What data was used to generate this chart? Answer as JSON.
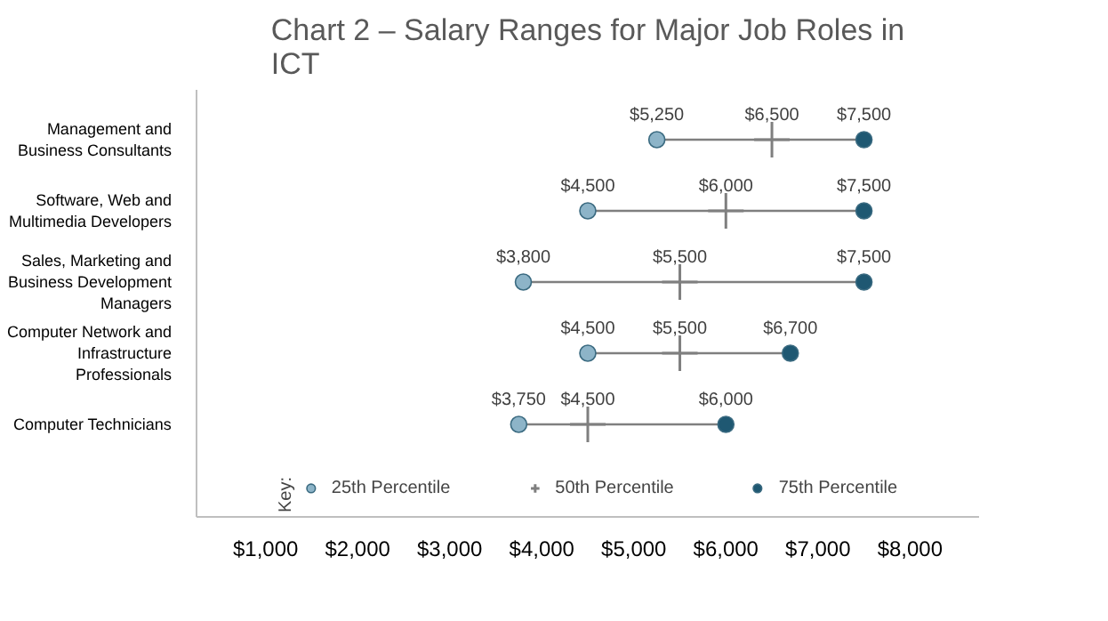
{
  "chart_data": {
    "type": "scatter",
    "orientation": "horizontal",
    "title": "Chart 2 – Salary Ranges for Major Job Roles in ICT",
    "categories": [
      "Management and Business Consultants",
      "Software, Web and Multimedia Developers",
      "Sales, Marketing and Business Development Managers",
      "Computer Network and Infrastructure Professionals",
      "Computer Technicians"
    ],
    "series": [
      {
        "name": "25th Percentile",
        "color": "#8db4c8",
        "marker": "circle",
        "values": [
          5250,
          4500,
          3800,
          4500,
          3750
        ],
        "value_labels": [
          "$5,250",
          "$4,500",
          "$3,800",
          "$4,500",
          "$3,750"
        ]
      },
      {
        "name": "50th Percentile",
        "color": "#7f7f7f",
        "marker": "cross",
        "values": [
          6500,
          6000,
          5500,
          5500,
          4500
        ],
        "value_labels": [
          "$6,500",
          "$6,000",
          "$5,500",
          "$5,500",
          "$4,500"
        ]
      },
      {
        "name": "75th Percentile",
        "color": "#1f5872",
        "marker": "circle",
        "values": [
          7500,
          7500,
          7500,
          6700,
          6000
        ],
        "value_labels": [
          "$7,500",
          "$7,500",
          "$7,500",
          "$6,700",
          "$6,000"
        ]
      }
    ],
    "xlim": [
      250,
      8750
    ],
    "xticks": [
      {
        "value": 1000,
        "label": "$1,000"
      },
      {
        "value": 2000,
        "label": "$2,000"
      },
      {
        "value": 3000,
        "label": "$3,000"
      },
      {
        "value": 4000,
        "label": "$4,000"
      },
      {
        "value": 5000,
        "label": "$5,000"
      },
      {
        "value": 6000,
        "label": "$6,000"
      },
      {
        "value": 7000,
        "label": "$7,000"
      },
      {
        "value": 8000,
        "label": "$8,000"
      }
    ],
    "legend": "bottom",
    "legend_title": "Key:",
    "grid": false
  }
}
